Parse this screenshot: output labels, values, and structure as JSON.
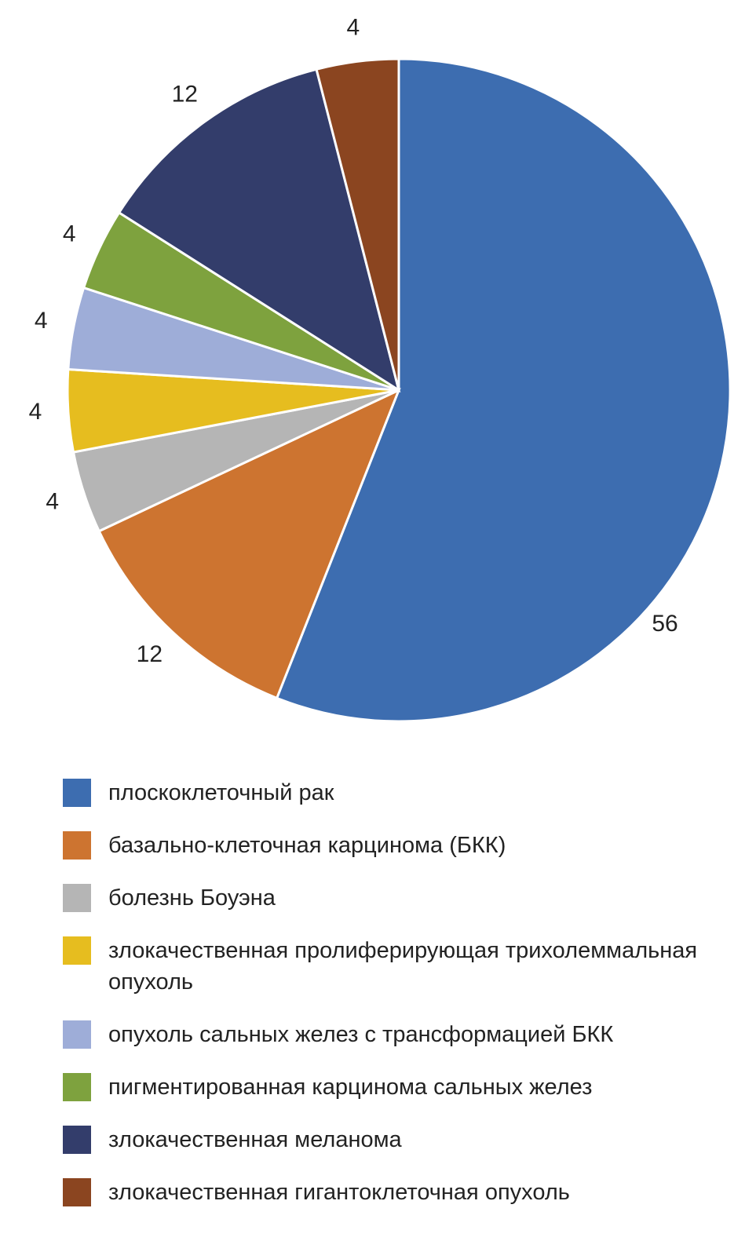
{
  "chart_data": {
    "type": "pie",
    "categories": [
      "плоскоклеточный рак",
      "базально-клеточная карцинома (БКК)",
      "болезнь Боуэна",
      "злокачественная пролиферирующая трихолеммальная опухоль",
      "опухоль сальных желез с трансформацией БКК",
      "пигментированная карцинома сальных желез",
      "злокачественная меланома",
      "злокачественная гигантоклеточная опухоль"
    ],
    "values": [
      56,
      12,
      4,
      4,
      4,
      4,
      12,
      4
    ],
    "colors": [
      "#3d6db0",
      "#cd7430",
      "#b5b5b5",
      "#e6bd1f",
      "#9eadd8",
      "#7ea23e",
      "#333d6b",
      "#8b4520"
    ],
    "legend": "bottom"
  }
}
